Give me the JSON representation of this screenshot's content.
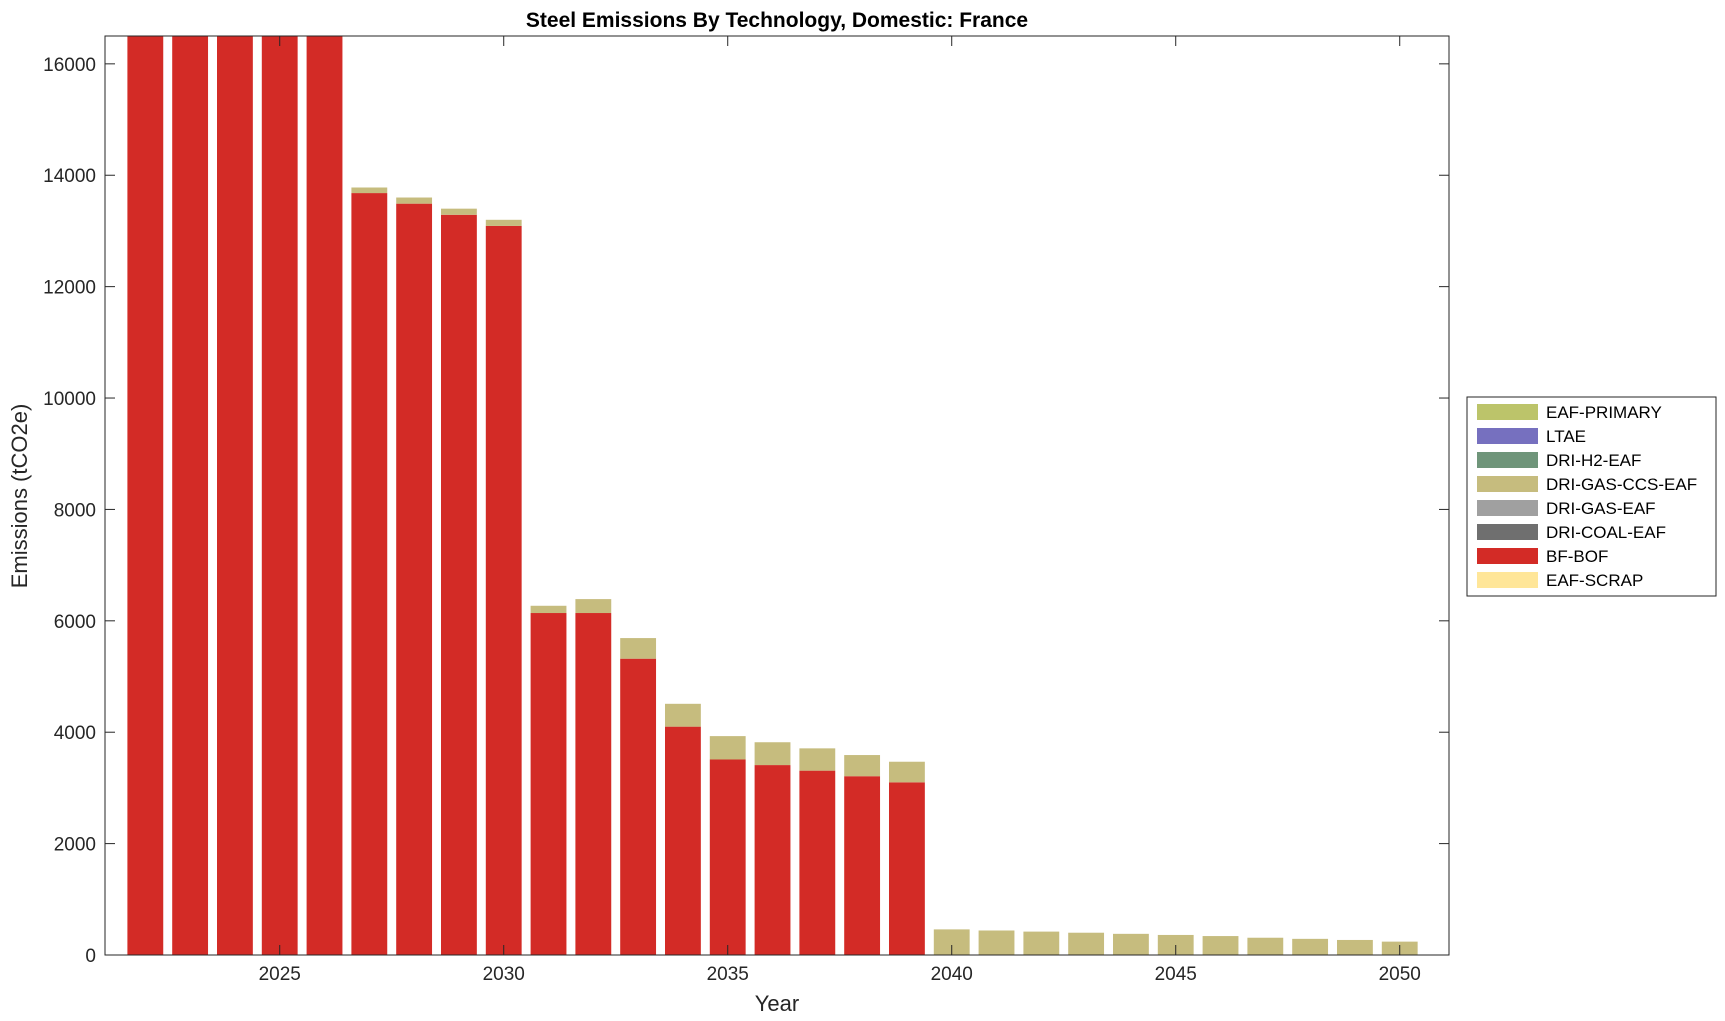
{
  "chart_data": {
    "type": "bar",
    "stacked": true,
    "title": "Steel Emissions By Technology, Domestic: France",
    "xlabel": "Year",
    "ylabel": "Emissions (tCO2e)",
    "xlim": [
      2021.1,
      2051.1
    ],
    "ylim": [
      0,
      16500
    ],
    "xticks": [
      2025,
      2030,
      2035,
      2040,
      2045,
      2050
    ],
    "yticks": [
      0,
      2000,
      4000,
      6000,
      8000,
      10000,
      12000,
      14000,
      16000
    ],
    "grid": false,
    "legend_position": "outside-right",
    "categories": [
      2022,
      2023,
      2024,
      2025,
      2026,
      2027,
      2028,
      2029,
      2030,
      2031,
      2032,
      2033,
      2034,
      2035,
      2036,
      2037,
      2038,
      2039,
      2040,
      2041,
      2042,
      2043,
      2044,
      2045,
      2046,
      2047,
      2048,
      2049,
      2050
    ],
    "series": [
      {
        "name": "EAF-SCRAP",
        "color": "#ffe699",
        "values": [
          0,
          0,
          0,
          0,
          0,
          0,
          0,
          0,
          0,
          0,
          0,
          0,
          0,
          0,
          0,
          0,
          0,
          0,
          0,
          0,
          0,
          0,
          0,
          0,
          0,
          0,
          0,
          0,
          0
        ]
      },
      {
        "name": "BF-BOF",
        "color": "#d32b26",
        "values": [
          16500,
          16500,
          16500,
          16500,
          16500,
          13680,
          13490,
          13290,
          13090,
          6140,
          6140,
          5320,
          4100,
          3510,
          3410,
          3310,
          3210,
          3100,
          0,
          0,
          0,
          0,
          0,
          0,
          0,
          0,
          0,
          0,
          0
        ]
      },
      {
        "name": "DRI-COAL-EAF",
        "color": "#6f6f6f",
        "values": [
          0,
          0,
          0,
          0,
          0,
          0,
          0,
          0,
          0,
          0,
          0,
          0,
          0,
          0,
          0,
          0,
          0,
          0,
          0,
          0,
          0,
          0,
          0,
          0,
          0,
          0,
          0,
          0,
          0
        ]
      },
      {
        "name": "DRI-GAS-EAF",
        "color": "#a0a0a0",
        "values": [
          0,
          0,
          0,
          0,
          0,
          0,
          0,
          0,
          0,
          0,
          0,
          0,
          0,
          0,
          0,
          0,
          0,
          0,
          0,
          0,
          0,
          0,
          0,
          0,
          0,
          0,
          0,
          0,
          0
        ]
      },
      {
        "name": "DRI-GAS-CCS-EAF",
        "color": "#c6bc7e",
        "values": [
          0,
          0,
          0,
          0,
          0,
          100,
          110,
          110,
          110,
          130,
          250,
          370,
          410,
          420,
          410,
          400,
          380,
          370,
          460,
          440,
          420,
          400,
          380,
          360,
          340,
          310,
          290,
          270,
          240
        ]
      },
      {
        "name": "DRI-H2-EAF",
        "color": "#6f957a",
        "values": [
          0,
          0,
          0,
          0,
          0,
          0,
          0,
          0,
          0,
          0,
          0,
          0,
          0,
          0,
          0,
          0,
          0,
          0,
          0,
          0,
          0,
          0,
          0,
          0,
          0,
          0,
          0,
          0,
          0
        ]
      },
      {
        "name": "LTAE",
        "color": "#7670bf",
        "values": [
          0,
          0,
          0,
          0,
          0,
          0,
          0,
          0,
          0,
          0,
          0,
          0,
          0,
          0,
          0,
          0,
          0,
          0,
          0,
          0,
          0,
          0,
          0,
          0,
          0,
          0,
          0,
          0,
          0
        ]
      },
      {
        "name": "EAF-PRIMARY",
        "color": "#bcc46a",
        "values": [
          0,
          0,
          0,
          0,
          0,
          0,
          0,
          0,
          0,
          0,
          0,
          0,
          0,
          0,
          0,
          0,
          0,
          0,
          0,
          0,
          0,
          0,
          0,
          0,
          0,
          0,
          0,
          0,
          0
        ]
      }
    ],
    "legend_order": [
      "EAF-PRIMARY",
      "LTAE",
      "DRI-H2-EAF",
      "DRI-GAS-CCS-EAF",
      "DRI-GAS-EAF",
      "DRI-COAL-EAF",
      "BF-BOF",
      "EAF-SCRAP"
    ]
  }
}
